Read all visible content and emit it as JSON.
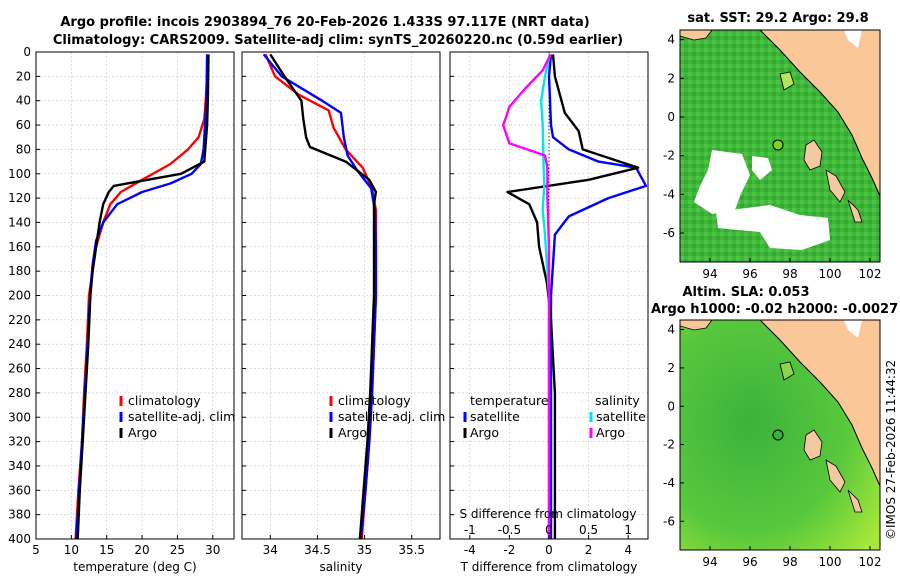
{
  "header": {
    "title_line1": "Argo profile: incois 2903894_76 20-Feb-2026 1.433S 97.117E (NRT data)",
    "title_line2": "Climatology: CARS2009. Satellite-adj clim: synTS_20260220.nc (0.59d earlier)"
  },
  "footer": {
    "credit": "©IMOS 27-Feb-2026 11:44:32"
  },
  "colors": {
    "climatology": "#ff0000",
    "satellite": "#0000ff",
    "argo": "#000000",
    "sal_satellite": "#00e5ee",
    "sal_argo": "#ff00ff"
  },
  "chart_data": [
    {
      "type": "line",
      "id": "temperature_profile",
      "xlabel": "temperature (deg C)",
      "xlim": [
        5,
        33
      ],
      "xticks": [
        "5",
        "10",
        "15",
        "20",
        "25",
        "30"
      ],
      "ylim": [
        400,
        0
      ],
      "yticks": [
        "0",
        "20",
        "40",
        "60",
        "80",
        "100",
        "120",
        "140",
        "160",
        "180",
        "200",
        "220",
        "240",
        "260",
        "280",
        "300",
        "320",
        "340",
        "360",
        "380",
        "400"
      ],
      "legend": [
        "climatology",
        "satellite-adj. clim",
        "Argo"
      ],
      "series": [
        {
          "name": "climatology",
          "color": "#ff0000",
          "points": [
            [
              29.3,
              2
            ],
            [
              29.2,
              20
            ],
            [
              29.0,
              40
            ],
            [
              28.8,
              55
            ],
            [
              28.0,
              70
            ],
            [
              26.5,
              80
            ],
            [
              24.0,
              92
            ],
            [
              20.0,
              105
            ],
            [
              17.0,
              115
            ],
            [
              15.5,
              125
            ],
            [
              14.5,
              140
            ],
            [
              13.5,
              160
            ],
            [
              13.0,
              180
            ],
            [
              12.5,
              200
            ],
            [
              12.2,
              240
            ],
            [
              11.8,
              280
            ],
            [
              11.5,
              320
            ],
            [
              11.0,
              360
            ],
            [
              10.6,
              400
            ]
          ]
        },
        {
          "name": "satellite-adj. clim",
          "color": "#0000ff",
          "points": [
            [
              29.2,
              2
            ],
            [
              29.1,
              40
            ],
            [
              28.7,
              80
            ],
            [
              28.3,
              92
            ],
            [
              27.0,
              100
            ],
            [
              24.0,
              108
            ],
            [
              20.0,
              115
            ],
            [
              16.5,
              125
            ],
            [
              14.5,
              140
            ],
            [
              13.5,
              155
            ],
            [
              13.0,
              175
            ],
            [
              12.7,
              195
            ],
            [
              12.3,
              240
            ],
            [
              11.9,
              280
            ],
            [
              11.5,
              320
            ],
            [
              11.1,
              360
            ],
            [
              10.7,
              400
            ]
          ]
        },
        {
          "name": "Argo",
          "color": "#000000",
          "points": [
            [
              29.4,
              2
            ],
            [
              29.3,
              40
            ],
            [
              29.2,
              60
            ],
            [
              29.0,
              75
            ],
            [
              28.8,
              90
            ],
            [
              25.5,
              100
            ],
            [
              16.0,
              110
            ],
            [
              15.3,
              115
            ],
            [
              14.5,
              125
            ],
            [
              14.0,
              140
            ],
            [
              13.5,
              160
            ],
            [
              13.0,
              180
            ],
            [
              12.7,
              200
            ],
            [
              12.4,
              240
            ],
            [
              12.0,
              280
            ],
            [
              11.6,
              320
            ],
            [
              11.2,
              360
            ],
            [
              10.9,
              400
            ]
          ]
        }
      ]
    },
    {
      "type": "line",
      "id": "salinity_profile",
      "xlabel": "salinity",
      "xlim": [
        33.7,
        35.8
      ],
      "xticks": [
        "34",
        "34.5",
        "35",
        "35.5"
      ],
      "ylim": [
        400,
        0
      ],
      "legend": [
        "climatology",
        "satellite-adj. clim",
        "Argo"
      ],
      "series": [
        {
          "name": "climatology",
          "color": "#ff0000",
          "points": [
            [
              33.95,
              2
            ],
            [
              34.05,
              20
            ],
            [
              34.3,
              35
            ],
            [
              34.62,
              48
            ],
            [
              34.67,
              62
            ],
            [
              34.8,
              80
            ],
            [
              34.98,
              95
            ],
            [
              35.08,
              112
            ],
            [
              35.12,
              130
            ],
            [
              35.12,
              160
            ],
            [
              35.12,
              200
            ],
            [
              35.1,
              240
            ],
            [
              35.08,
              280
            ],
            [
              35.05,
              320
            ],
            [
              35.01,
              360
            ],
            [
              34.97,
              400
            ]
          ]
        },
        {
          "name": "satellite-adj. clim",
          "color": "#0000ff",
          "points": [
            [
              33.93,
              2
            ],
            [
              34.12,
              20
            ],
            [
              34.55,
              40
            ],
            [
              34.75,
              50
            ],
            [
              34.78,
              70
            ],
            [
              34.82,
              85
            ],
            [
              34.92,
              97
            ],
            [
              35.07,
              112
            ],
            [
              35.11,
              130
            ],
            [
              35.12,
              160
            ],
            [
              35.12,
              200
            ],
            [
              35.1,
              240
            ],
            [
              35.08,
              280
            ],
            [
              35.05,
              320
            ],
            [
              35.01,
              360
            ],
            [
              34.96,
              400
            ]
          ]
        },
        {
          "name": "Argo",
          "color": "#000000",
          "points": [
            [
              34.0,
              2
            ],
            [
              34.15,
              20
            ],
            [
              34.33,
              40
            ],
            [
              34.35,
              55
            ],
            [
              34.38,
              70
            ],
            [
              34.42,
              78
            ],
            [
              34.8,
              90
            ],
            [
              35.05,
              105
            ],
            [
              35.12,
              115
            ],
            [
              35.1,
              125
            ],
            [
              35.1,
              160
            ],
            [
              35.1,
              200
            ],
            [
              35.08,
              240
            ],
            [
              35.06,
              280
            ],
            [
              35.03,
              320
            ],
            [
              34.99,
              360
            ],
            [
              34.95,
              400
            ]
          ]
        }
      ]
    },
    {
      "type": "line",
      "id": "difference_profile",
      "xlabel": "T difference from climatology",
      "xlim": [
        -5,
        5
      ],
      "xticks": [
        "-4",
        "-2",
        "0",
        "2",
        "4"
      ],
      "top_xlabel": "S difference from climatology",
      "top_xlim": [
        -1.25,
        1.25
      ],
      "top_xticks": [
        "-1",
        "-0.5",
        "0",
        "0.5",
        "1"
      ],
      "ylim": [
        400,
        0
      ],
      "legend": {
        "temperature_title": "temperature",
        "salinity_title": "salinity",
        "satellite": "satellite",
        "argo": "Argo"
      },
      "series": [
        {
          "name": "T satellite",
          "color": "#0000ff",
          "points": [
            [
              0.1,
              2
            ],
            [
              0.0,
              20
            ],
            [
              0.1,
              60
            ],
            [
              0.2,
              70
            ],
            [
              1.0,
              80
            ],
            [
              2.5,
              90
            ],
            [
              4.4,
              95
            ],
            [
              4.9,
              110
            ],
            [
              3.0,
              120
            ],
            [
              1.0,
              135
            ],
            [
              0.3,
              150
            ],
            [
              0.1,
              200
            ],
            [
              0.1,
              400
            ]
          ]
        },
        {
          "name": "T Argo",
          "color": "#000000",
          "points": [
            [
              0.2,
              2
            ],
            [
              0.3,
              20
            ],
            [
              0.8,
              50
            ],
            [
              1.5,
              65
            ],
            [
              1.7,
              80
            ],
            [
              4.5,
              95
            ],
            [
              2.0,
              105
            ],
            [
              -2.1,
              115
            ],
            [
              -1.0,
              125
            ],
            [
              -0.6,
              140
            ],
            [
              -0.5,
              160
            ],
            [
              -0.1,
              190
            ],
            [
              0.1,
              220
            ],
            [
              0.3,
              280
            ],
            [
              0.3,
              400
            ]
          ]
        },
        {
          "name": "S satellite",
          "color": "#00e5ee",
          "points": [
            [
              0.01,
              2
            ],
            [
              -0.05,
              20
            ],
            [
              -0.1,
              40
            ],
            [
              -0.08,
              60
            ],
            [
              -0.07,
              90
            ],
            [
              -0.06,
              110
            ],
            [
              -0.08,
              130
            ],
            [
              -0.05,
              150
            ],
            [
              -0.02,
              180
            ],
            [
              0.0,
              200
            ],
            [
              0.0,
              400
            ]
          ]
        },
        {
          "name": "S Argo",
          "color": "#ff00ff",
          "points": [
            [
              0.02,
              2
            ],
            [
              -0.08,
              15
            ],
            [
              -0.3,
              30
            ],
            [
              -0.5,
              45
            ],
            [
              -0.55,
              55
            ],
            [
              -0.58,
              60
            ],
            [
              -0.5,
              75
            ],
            [
              -0.05,
              85
            ],
            [
              -0.02,
              95
            ],
            [
              -0.02,
              120
            ],
            [
              0.0,
              160
            ],
            [
              0.0,
              400
            ]
          ]
        }
      ]
    },
    {
      "type": "heatmap",
      "id": "sst_map",
      "title": "sat. SST: 29.2 Argo: 29.8",
      "xticks": [
        "94",
        "96",
        "98",
        "100",
        "102"
      ],
      "yticks": [
        "4",
        "2",
        "0",
        "-2",
        "-4",
        "-6"
      ],
      "xlim": [
        92.5,
        102.5
      ],
      "ylim": [
        -7.5,
        4.5
      ],
      "argo_location": [
        97.117,
        -1.433
      ]
    },
    {
      "type": "heatmap",
      "id": "sla_map",
      "title_line1": "Altim. SLA: 0.053",
      "title_line2": "Argo h1000: -0.02 h2000: -0.0027",
      "xticks": [
        "94",
        "96",
        "98",
        "100",
        "102"
      ],
      "yticks": [
        "4",
        "2",
        "0",
        "-2",
        "-4",
        "-6"
      ],
      "xlim": [
        92.5,
        102.5
      ],
      "ylim": [
        -7.5,
        4.5
      ],
      "argo_location": [
        97.117,
        -1.433
      ]
    }
  ]
}
